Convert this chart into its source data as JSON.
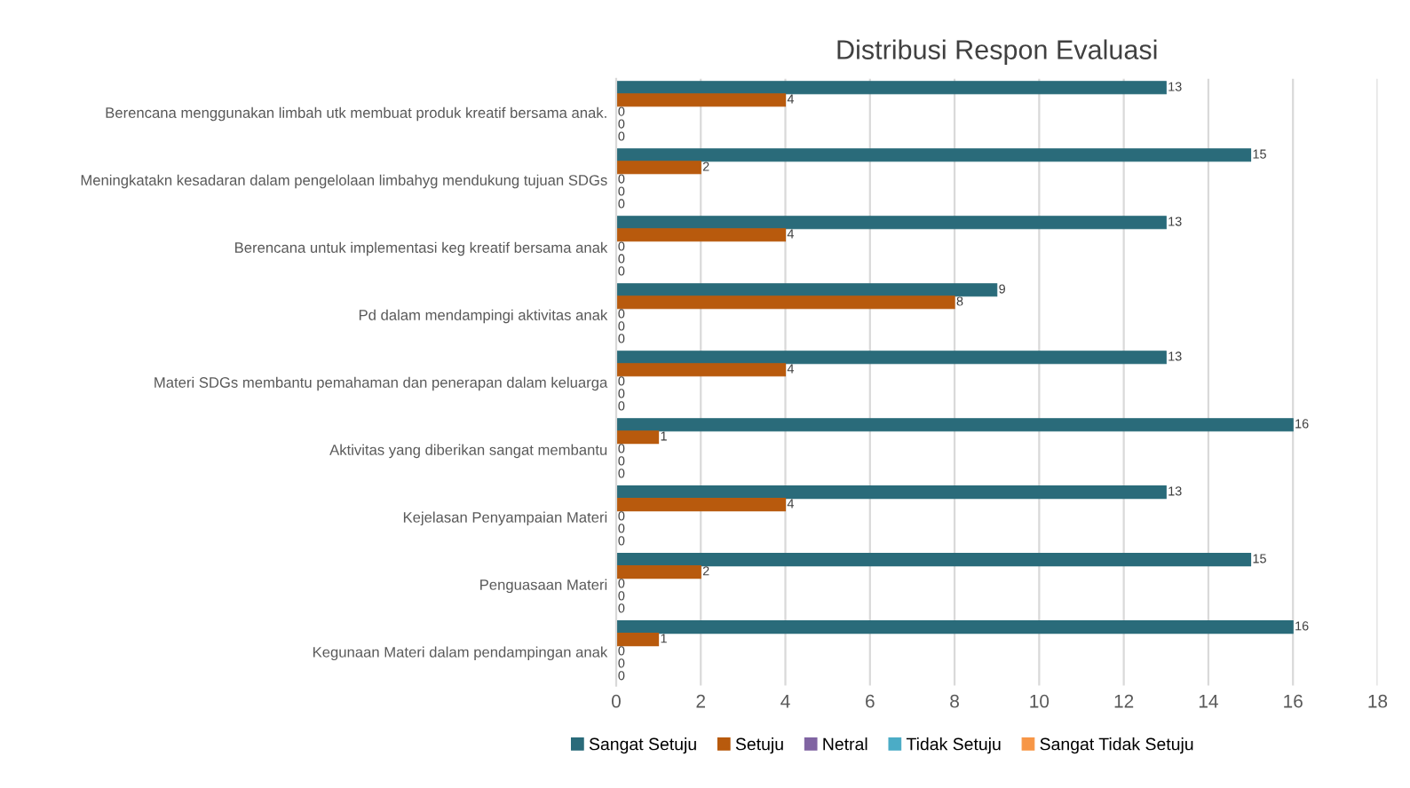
{
  "chart_data": {
    "type": "bar",
    "orientation": "horizontal",
    "title": "Distribusi Respon Evaluasi",
    "categories": [
      "Berencana menggunakan limbah utk membuat produk kreatif bersama anak.",
      "Meningkatakn kesadaran dalam pengelolaan limbahyg mendukung tujuan SDGs",
      "Berencana untuk implementasi keg kreatif bersama anak",
      "Pd dalam mendampingi aktivitas anak",
      "Materi SDGs membantu pemahaman dan penerapan dalam keluarga",
      "Aktivitas yang diberikan sangat membantu",
      "Kejelasan Penyampaian Materi",
      "Penguasaan Materi",
      "Kegunaan Materi dalam pendampingan anak"
    ],
    "series": [
      {
        "name": "Sangat Setuju",
        "color": "#2a6b7a",
        "values": [
          13,
          15,
          13,
          9,
          13,
          16,
          13,
          15,
          16
        ]
      },
      {
        "name": "Setuju",
        "color": "#b85a0d",
        "values": [
          4,
          2,
          4,
          8,
          4,
          1,
          4,
          2,
          1
        ]
      },
      {
        "name": "Netral",
        "color": "#8064a2",
        "values": [
          0,
          0,
          0,
          0,
          0,
          0,
          0,
          0,
          0
        ]
      },
      {
        "name": "Tidak Setuju",
        "color": "#4bacc6",
        "values": [
          0,
          0,
          0,
          0,
          0,
          0,
          0,
          0,
          0
        ]
      },
      {
        "name": "Sangat Tidak Setuju",
        "color": "#f79646",
        "values": [
          0,
          0,
          0,
          0,
          0,
          0,
          0,
          0,
          0
        ]
      }
    ],
    "xlim": [
      0,
      18
    ],
    "xticks": [
      0,
      2,
      4,
      6,
      8,
      10,
      12,
      14,
      16,
      18
    ],
    "grid": "x",
    "legend": "bottom",
    "data_labels": true
  }
}
